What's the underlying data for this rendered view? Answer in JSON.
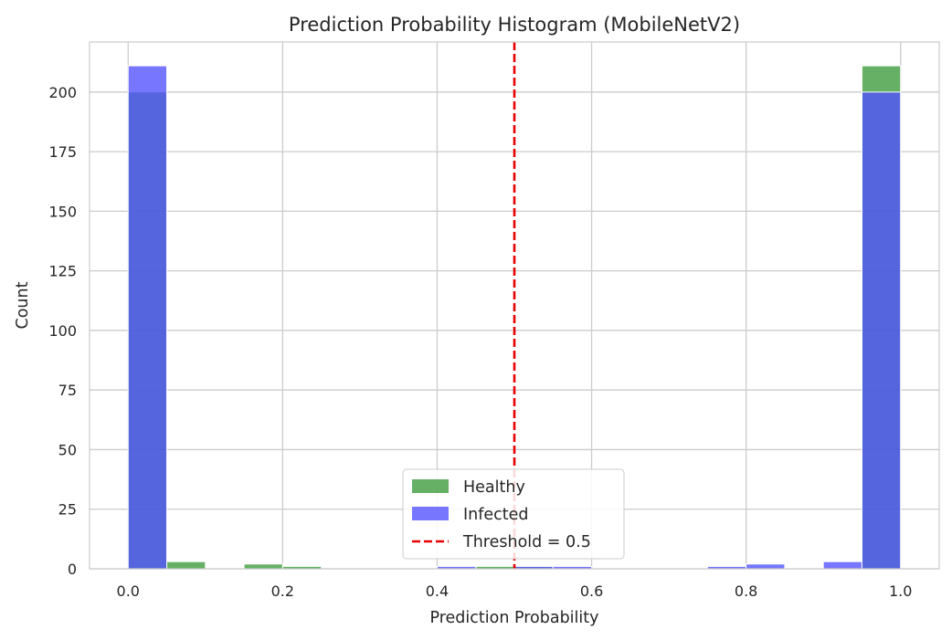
{
  "chart_data": {
    "type": "bar",
    "title": "Prediction Probability Histogram (MobileNetV2)",
    "xlabel": "Prediction Probability",
    "ylabel": "Count",
    "xlim": [
      -0.05,
      1.05
    ],
    "ylim": [
      0,
      221
    ],
    "xticks": [
      "0.0",
      "0.2",
      "0.4",
      "0.6",
      "0.8",
      "1.0"
    ],
    "xtick_values": [
      0.0,
      0.2,
      0.4,
      0.6,
      0.8,
      1.0
    ],
    "yticks": [
      "0",
      "25",
      "50",
      "75",
      "100",
      "125",
      "150",
      "175",
      "200"
    ],
    "ytick_values": [
      0,
      25,
      50,
      75,
      100,
      125,
      150,
      175,
      200
    ],
    "bin_edges": [
      0.0,
      0.05,
      0.1,
      0.15,
      0.2,
      0.25,
      0.3,
      0.35,
      0.4,
      0.45,
      0.5,
      0.55,
      0.6,
      0.65,
      0.7,
      0.75,
      0.8,
      0.85,
      0.9,
      0.95,
      1.0
    ],
    "series": [
      {
        "name": "Healthy",
        "color": "#3a9a3a",
        "values": [
          200,
          3,
          0,
          2,
          1,
          0,
          0,
          0,
          0,
          1,
          1,
          0,
          0,
          0,
          0,
          0,
          0,
          0,
          0,
          211
        ]
      },
      {
        "name": "Infected",
        "color": "#5050ff",
        "values": [
          211,
          0,
          0,
          0,
          0,
          0,
          0,
          0,
          1,
          0,
          1,
          1,
          0,
          0,
          0,
          1,
          2,
          0,
          3,
          200
        ]
      }
    ],
    "threshold": {
      "label": "Threshold = 0.5",
      "value": 0.5,
      "color": "#e60000"
    },
    "grid": true,
    "legend_position": "lower-center"
  }
}
